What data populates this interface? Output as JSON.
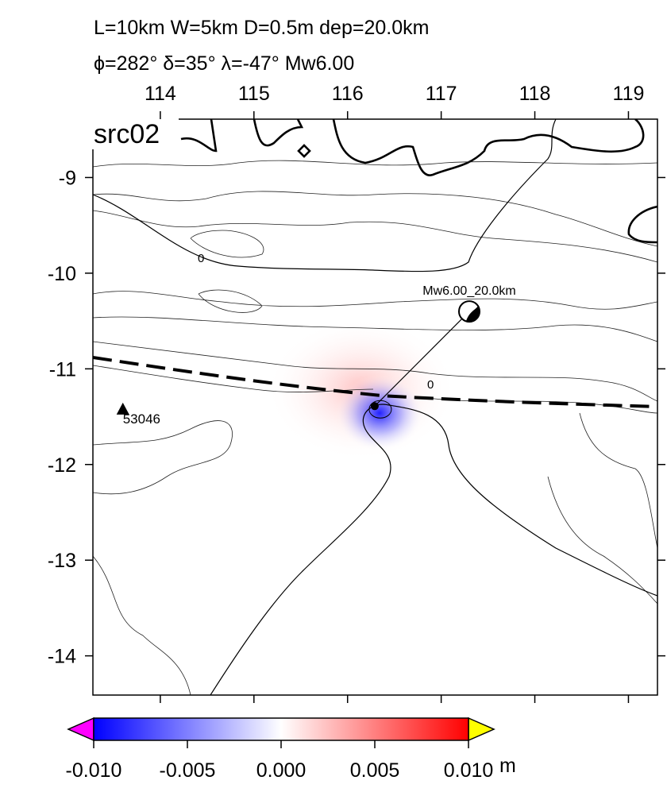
{
  "title_lines": [
    "L=10km W=5km D=0.5m dep=20.0km",
    "ϕ=282° δ=35° λ=-47° Mw6.00"
  ],
  "panel_label": "src02",
  "map": {
    "xlim": [
      113.28,
      119.31
    ],
    "ylim": [
      -14.41,
      -8.39
    ],
    "xticks": [
      114,
      115,
      116,
      117,
      118,
      119
    ],
    "yticks": [
      -9,
      -10,
      -11,
      -12,
      -13,
      -14
    ],
    "contour_labels": [
      "0",
      "0"
    ],
    "epicenter": {
      "lon": 116.29,
      "lat": -11.39
    },
    "mechanism": {
      "lon": 117.3,
      "lat": -10.4,
      "label": "Mw6.00_20.0km"
    },
    "station": {
      "lon": 113.6,
      "lat": -11.42,
      "label": "53046"
    }
  },
  "colorbar": {
    "lim": [
      -0.01,
      0.01
    ],
    "unit": "m",
    "colors": [
      "#0000ff",
      "#ffffff",
      "#ff0000"
    ],
    "below_color": "#ff00ff",
    "above_color": "#ffff00",
    "ticks": [
      {
        "value": -0.01,
        "label": "-0.010"
      },
      {
        "value": -0.005,
        "label": "-0.005"
      },
      {
        "value": 0,
        "label": "0.000"
      },
      {
        "value": 0.005,
        "label": "0.005"
      },
      {
        "value": 0.01,
        "label": "0.010"
      }
    ]
  }
}
